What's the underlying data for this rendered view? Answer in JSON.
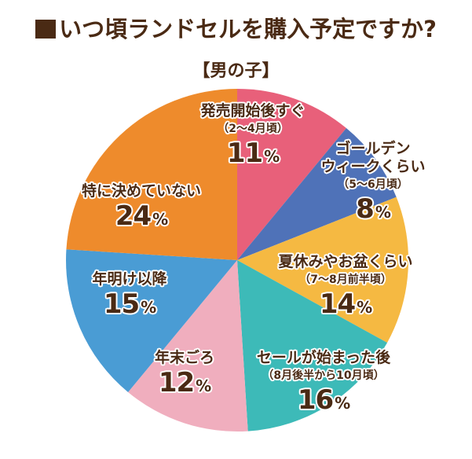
{
  "title": "いつ頃ランドセルを購入予定ですか?",
  "title_marker": "■",
  "subtitle": "【男の子】",
  "colors": {
    "text": "#4a2a14",
    "slices": [
      "#e8607a",
      "#4f72b8",
      "#f5b942",
      "#3dbab8",
      "#f0aebe",
      "#4a9cd4",
      "#ee8b2c"
    ]
  },
  "slices": [
    {
      "name": "発売開始後すぐ",
      "sub": "（2～4月頃）",
      "value": "11",
      "unit": "%"
    },
    {
      "name1": "ゴールデン",
      "name2": "ウィークくらい",
      "sub": "（5～6月頃）",
      "value": "8",
      "unit": "%"
    },
    {
      "name": "夏休みやお盆くらい",
      "sub": "（7～8月前半頃）",
      "value": "14",
      "unit": "%"
    },
    {
      "name": "セールが始まった後",
      "sub": "（8月後半から10月頃）",
      "value": "16",
      "unit": "%"
    },
    {
      "name": "年末ごろ",
      "value": "12",
      "unit": "%"
    },
    {
      "name": "年明け以降",
      "value": "15",
      "unit": "%"
    },
    {
      "name": "特に決めていない",
      "value": "24",
      "unit": "%"
    }
  ],
  "chart_data": {
    "type": "pie",
    "title": "■いつ頃ランドセルを購入予定ですか?",
    "subtitle": "【男の子】",
    "categories": [
      "発売開始後すぐ（2～4月頃）",
      "ゴールデンウィークくらい（5～6月頃）",
      "夏休みやお盆くらい（7～8月前半頃）",
      "セールが始まった後（8月後半から10月頃）",
      "年末ごろ",
      "年明け以降",
      "特に決めていない"
    ],
    "values": [
      11,
      8,
      14,
      16,
      12,
      15,
      24
    ],
    "unit": "%",
    "colors": [
      "#e8607a",
      "#4f72b8",
      "#f5b942",
      "#3dbab8",
      "#f0aebe",
      "#4a9cd4",
      "#ee8b2c"
    ],
    "start_angle": "12 o'clock",
    "direction": "clockwise",
    "legend": "none (labels inside slices)"
  }
}
